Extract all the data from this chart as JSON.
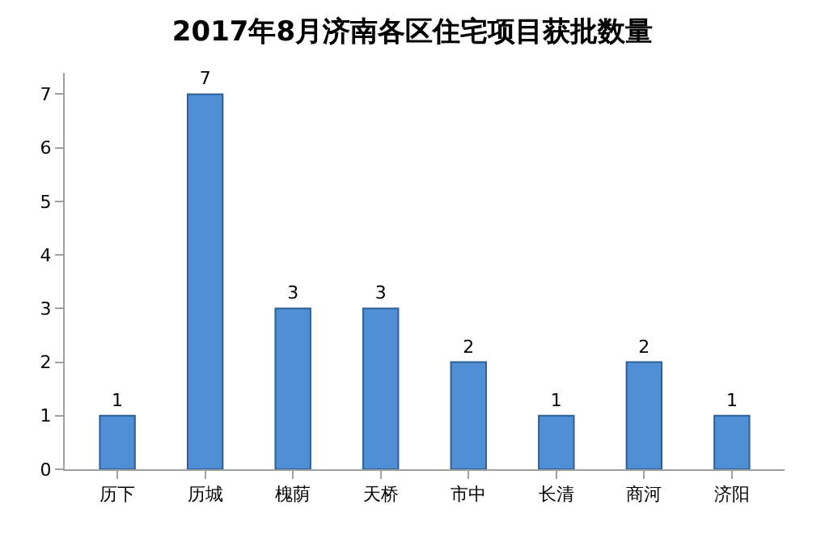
{
  "chart_data": {
    "type": "bar",
    "title": "2017年8月济南各区住宅项目获批数量",
    "categories": [
      "历下",
      "历城",
      "槐荫",
      "天桥",
      "市中",
      "长清",
      "商河",
      "济阳"
    ],
    "values": [
      1,
      7,
      3,
      3,
      2,
      1,
      2,
      1
    ],
    "color": "#4f8fd6",
    "ylim": [
      0,
      7.4
    ],
    "yticks": [
      0,
      1,
      2,
      3,
      4,
      5,
      6,
      7
    ],
    "grid": false,
    "data_labels": true
  }
}
